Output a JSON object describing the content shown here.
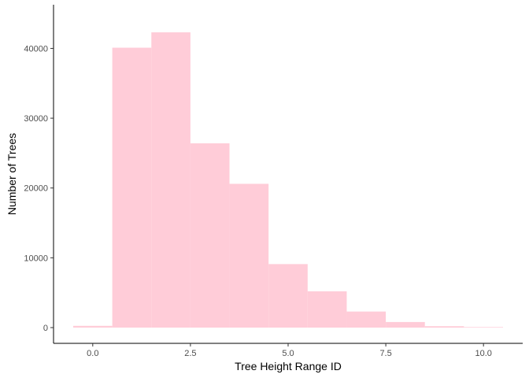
{
  "chart_data": {
    "type": "bar",
    "title": "",
    "xlabel": "Tree Height Range ID",
    "ylabel": "Number of Trees",
    "x": [
      0,
      1,
      2,
      3,
      4,
      5,
      6,
      7,
      8,
      9,
      10
    ],
    "values": [
      250,
      40100,
      42300,
      26400,
      20600,
      9100,
      5200,
      2300,
      800,
      200,
      80
    ],
    "bin_width": 1,
    "xlim": [
      -0.5,
      10.5
    ],
    "ylim": [
      0,
      44000
    ],
    "x_ticks": [
      0,
      2.5,
      5,
      7.5,
      10
    ],
    "x_tick_labels": [
      "0.0",
      "2.5",
      "5.0",
      "7.5",
      "10.0"
    ],
    "y_ticks": [
      0,
      10000,
      20000,
      30000,
      40000
    ],
    "y_tick_labels": [
      "0",
      "10000",
      "20000",
      "30000",
      "40000"
    ],
    "bar_color": "#ffccd8",
    "axis_color": "#000000",
    "grid": false,
    "legend": "none"
  }
}
